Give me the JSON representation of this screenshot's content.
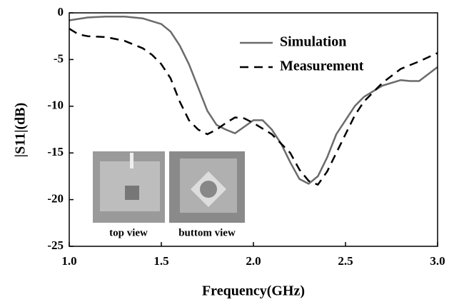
{
  "chart_data": {
    "type": "line",
    "xlabel": "Frequency(GHz)",
    "ylabel": "|S11|(dB)",
    "xlim": [
      1.0,
      3.0
    ],
    "xticks": [
      {
        "value": 1.0,
        "label": "1.0"
      },
      {
        "value": 1.5,
        "label": "1.5"
      },
      {
        "value": 2.0,
        "label": "2.0"
      },
      {
        "value": 2.5,
        "label": "2.5"
      },
      {
        "value": 3.0,
        "label": "3.0"
      }
    ],
    "ylim": [
      -25,
      0
    ],
    "yticks": [
      -25,
      -20,
      -15,
      -10,
      -5,
      0
    ],
    "legend": "upper right",
    "series": [
      {
        "name": "Simulation",
        "color": "#6b6b6b",
        "dash": false,
        "x": [
          1.0,
          1.1,
          1.2,
          1.3,
          1.4,
          1.5,
          1.55,
          1.6,
          1.65,
          1.7,
          1.75,
          1.8,
          1.85,
          1.9,
          1.95,
          2.0,
          2.05,
          2.1,
          2.15,
          2.2,
          2.25,
          2.3,
          2.35,
          2.4,
          2.45,
          2.5,
          2.55,
          2.6,
          2.7,
          2.8,
          2.85,
          2.9,
          3.0
        ],
        "values": [
          -0.8,
          -0.5,
          -0.4,
          -0.4,
          -0.6,
          -1.2,
          -2.0,
          -3.5,
          -5.5,
          -8.0,
          -10.5,
          -12.0,
          -12.5,
          -12.9,
          -12.2,
          -11.5,
          -11.5,
          -12.5,
          -14.0,
          -16.0,
          -17.8,
          -18.3,
          -17.5,
          -15.5,
          -13.0,
          -11.5,
          -10.0,
          -9.0,
          -7.8,
          -7.2,
          -7.3,
          -7.3,
          -5.8
        ]
      },
      {
        "name": "Measurement",
        "color": "#000000",
        "dash": true,
        "x": [
          1.0,
          1.05,
          1.1,
          1.2,
          1.3,
          1.4,
          1.45,
          1.5,
          1.55,
          1.6,
          1.65,
          1.7,
          1.75,
          1.8,
          1.85,
          1.9,
          1.95,
          2.0,
          2.1,
          2.2,
          2.25,
          2.3,
          2.35,
          2.4,
          2.45,
          2.5,
          2.55,
          2.6,
          2.7,
          2.8,
          2.9,
          3.0
        ],
        "values": [
          -1.7,
          -2.3,
          -2.5,
          -2.6,
          -3.0,
          -3.8,
          -4.5,
          -5.5,
          -7.0,
          -9.5,
          -11.5,
          -12.5,
          -13.0,
          -12.5,
          -11.8,
          -11.2,
          -11.3,
          -11.8,
          -13.0,
          -15.0,
          -16.8,
          -18.0,
          -18.4,
          -17.0,
          -15.0,
          -13.0,
          -11.0,
          -9.5,
          -7.5,
          -6.0,
          -5.2,
          -4.3
        ]
      }
    ],
    "inset_labels": [
      "top view",
      "buttom view"
    ]
  }
}
